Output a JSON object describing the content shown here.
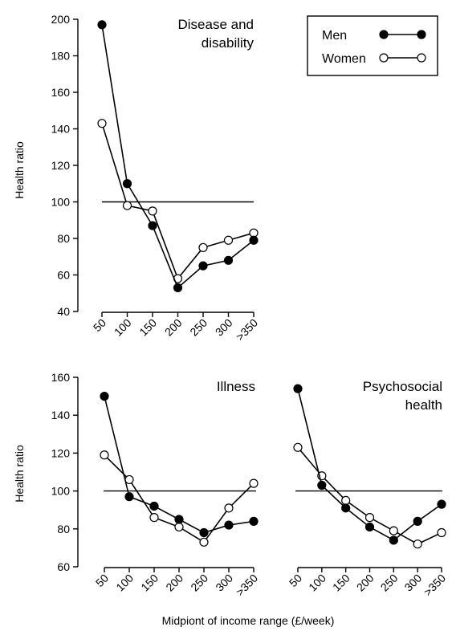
{
  "figure": {
    "xlabel": "Midpiont of income range (£/week)",
    "ylabel": "Health ratio"
  },
  "legend": {
    "items": [
      {
        "label": "Men",
        "series": "men"
      },
      {
        "label": "Women",
        "series": "women"
      }
    ]
  },
  "chart_data": [
    {
      "type": "line",
      "title": "Disease and\ndisability",
      "title_lines": [
        "Disease and",
        "disability"
      ],
      "xlabel": "",
      "ylabel": "Health ratio",
      "categories": [
        "50",
        "100",
        "150",
        "200",
        "250",
        "300",
        ">350"
      ],
      "ylim": [
        40,
        200
      ],
      "yticks": [
        40,
        60,
        80,
        100,
        120,
        140,
        160,
        180,
        200
      ],
      "reference_line": 100,
      "series": [
        {
          "name": "Men",
          "key": "men",
          "values": [
            197,
            110,
            87,
            53,
            65,
            68,
            79
          ]
        },
        {
          "name": "Women",
          "key": "women",
          "values": [
            143,
            98,
            95,
            58,
            75,
            79,
            83
          ]
        }
      ]
    },
    {
      "type": "line",
      "title": "Illness",
      "title_lines": [
        "Illness"
      ],
      "xlabel": "",
      "ylabel": "Health ratio",
      "categories": [
        "50",
        "100",
        "150",
        "200",
        "250",
        "300",
        ">350"
      ],
      "ylim": [
        60,
        160
      ],
      "yticks": [
        60,
        80,
        100,
        120,
        140,
        160
      ],
      "reference_line": 100,
      "series": [
        {
          "name": "Men",
          "key": "men",
          "values": [
            150,
            97,
            92,
            85,
            78,
            82,
            84
          ]
        },
        {
          "name": "Women",
          "key": "women",
          "values": [
            119,
            106,
            86,
            81,
            73,
            91,
            104
          ]
        }
      ]
    },
    {
      "type": "line",
      "title": "Psychosocial\nhealth",
      "title_lines": [
        "Psychosocial",
        "health"
      ],
      "xlabel": "",
      "ylabel": "",
      "categories": [
        "50",
        "100",
        "150",
        "200",
        "250",
        "300",
        ">350"
      ],
      "ylim": [
        60,
        160
      ],
      "yticks": [],
      "reference_line": 100,
      "series": [
        {
          "name": "Men",
          "key": "men",
          "values": [
            154,
            103,
            91,
            81,
            74,
            84,
            93
          ]
        },
        {
          "name": "Women",
          "key": "women",
          "values": [
            123,
            108,
            95,
            86,
            79,
            72,
            78
          ]
        }
      ]
    }
  ]
}
